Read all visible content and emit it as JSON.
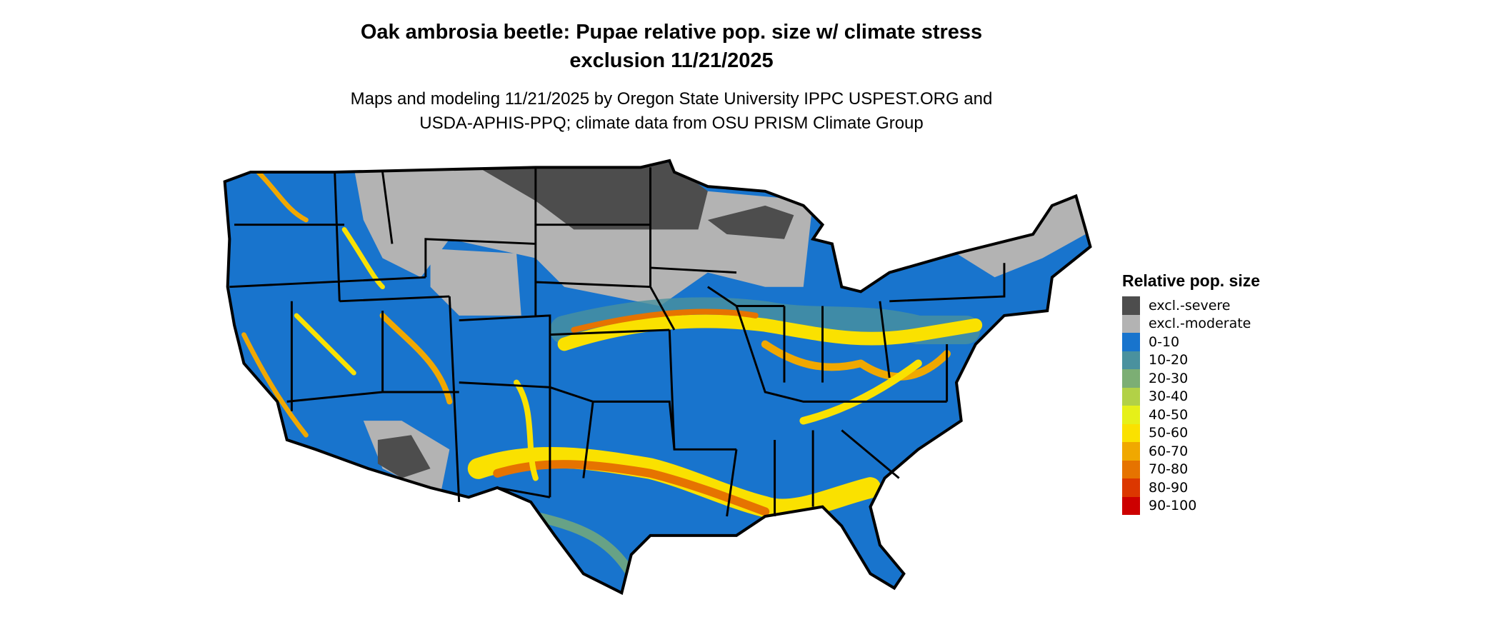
{
  "map": {
    "title_line1": "Oak ambrosia beetle: Pupae relative pop. size w/ climate stress",
    "title_line2": "exclusion 11/21/2025",
    "subtitle_line1": "Maps and modeling 11/21/2025 by Oregon State University IPPC USPEST.ORG and",
    "subtitle_line2": "USDA-APHIS-PPQ; climate data from OSU PRISM Climate Group",
    "region": "Contiguous United States"
  },
  "legend": {
    "title": "Relative pop. size",
    "items": [
      {
        "label": "excl.-severe",
        "color": "#4d4d4d"
      },
      {
        "label": "excl.-moderate",
        "color": "#b3b3b3"
      },
      {
        "label": "0-10",
        "color": "#1874cd"
      },
      {
        "label": "10-20",
        "color": "#4a919e"
      },
      {
        "label": "20-30",
        "color": "#7cae74"
      },
      {
        "label": "30-40",
        "color": "#b2d147"
      },
      {
        "label": "40-50",
        "color": "#e6f019"
      },
      {
        "label": "50-60",
        "color": "#fae100"
      },
      {
        "label": "60-70",
        "color": "#f0a800"
      },
      {
        "label": "70-80",
        "color": "#e67300"
      },
      {
        "label": "80-90",
        "color": "#dc3700"
      },
      {
        "label": "90-100",
        "color": "#cd0000"
      }
    ]
  }
}
